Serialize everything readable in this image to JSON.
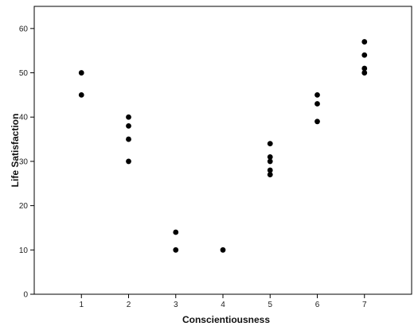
{
  "chart_data": {
    "type": "scatter",
    "xlabel": "Conscientiousness",
    "ylabel": "Life Satisfaction",
    "x_ticks": [
      1,
      2,
      3,
      4,
      5,
      6,
      7
    ],
    "y_ticks": [
      0,
      10,
      20,
      30,
      40,
      50,
      60
    ],
    "xlim": [
      0,
      8
    ],
    "ylim": [
      0,
      65
    ],
    "grid": false,
    "marker_color": "#000000",
    "points": [
      {
        "x": 1,
        "y": 50
      },
      {
        "x": 1,
        "y": 45
      },
      {
        "x": 2,
        "y": 40
      },
      {
        "x": 2,
        "y": 38
      },
      {
        "x": 2,
        "y": 35
      },
      {
        "x": 2,
        "y": 30
      },
      {
        "x": 3,
        "y": 14
      },
      {
        "x": 3,
        "y": 10
      },
      {
        "x": 4,
        "y": 10
      },
      {
        "x": 5,
        "y": 34
      },
      {
        "x": 5,
        "y": 31
      },
      {
        "x": 5,
        "y": 30
      },
      {
        "x": 5,
        "y": 28
      },
      {
        "x": 5,
        "y": 27
      },
      {
        "x": 6,
        "y": 45
      },
      {
        "x": 6,
        "y": 43
      },
      {
        "x": 6,
        "y": 39
      },
      {
        "x": 7,
        "y": 57
      },
      {
        "x": 7,
        "y": 54
      },
      {
        "x": 7,
        "y": 51
      },
      {
        "x": 7,
        "y": 50
      }
    ]
  }
}
